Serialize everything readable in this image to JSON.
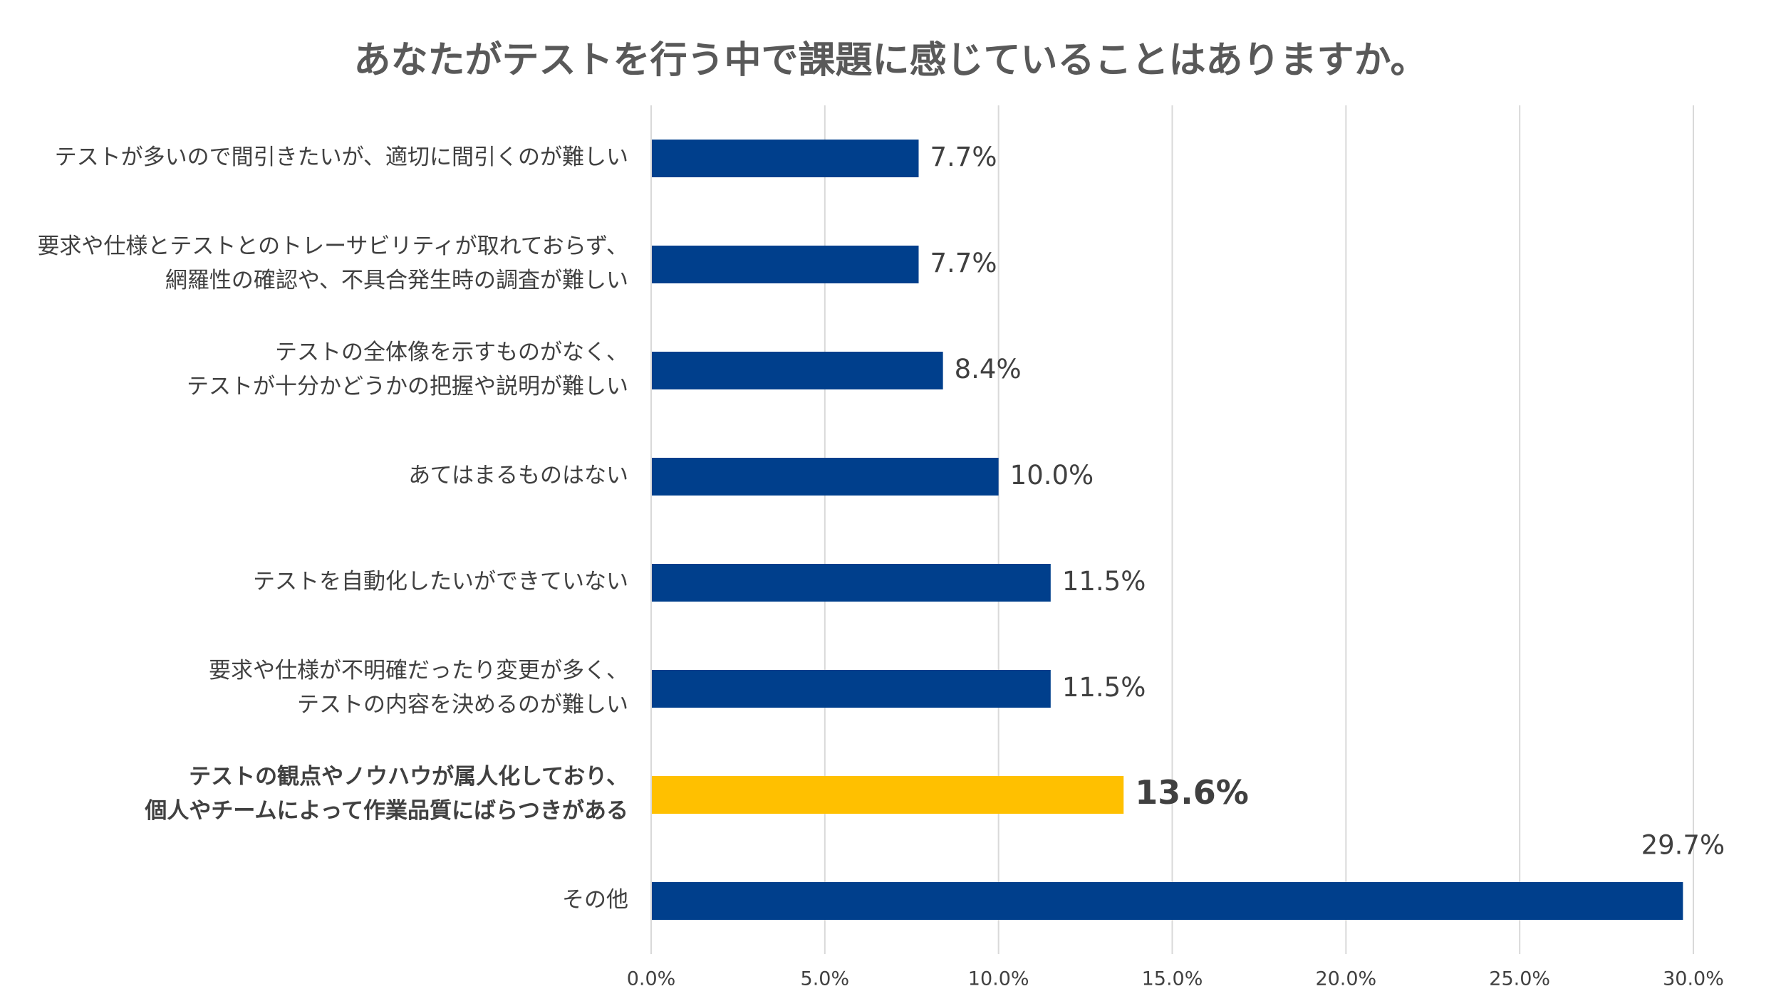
{
  "chart_data": {
    "type": "hbar",
    "title": "あなたがテストを行う中で課題に感じていることはありますか。",
    "categories": [
      [
        "テストが多いので間引きたいが、適切に間引くのが難しい"
      ],
      [
        "要求や仕様とテストとのトレーサビリティが取れておらず、",
        "網羅性の確認や、不具合発生時の調査が難しい"
      ],
      [
        "テストの全体像を示すものがなく、",
        "テストが十分かどうかの把握や説明が難しい"
      ],
      [
        "あてはまるものはない"
      ],
      [
        "テストを自動化したいができていない"
      ],
      [
        "要求や仕様が不明確だったり変更が多く、",
        "テストの内容を決めるのが難しい"
      ],
      [
        "テストの観点やノウハウが属人化しており、",
        "個人やチームによって作業品質にばらつきがある"
      ],
      [
        "その他"
      ]
    ],
    "values": [
      7.7,
      7.7,
      8.4,
      10.0,
      11.5,
      11.5,
      13.6,
      29.7
    ],
    "value_labels": [
      "7.7%",
      "7.7%",
      "8.4%",
      "10.0%",
      "11.5%",
      "11.5%",
      "13.6%",
      "29.7%"
    ],
    "colors": [
      "#003f8c",
      "#003f8c",
      "#003f8c",
      "#003f8c",
      "#003f8c",
      "#003f8c",
      "#ffc000",
      "#003f8c"
    ],
    "emphasis": [
      false,
      false,
      false,
      false,
      false,
      false,
      true,
      false
    ],
    "xlim": [
      0,
      30
    ],
    "xticks": [
      {
        "value": 0,
        "label": "0.0%"
      },
      {
        "value": 5,
        "label": "5.0%"
      },
      {
        "value": 10,
        "label": "10.0%"
      },
      {
        "value": 15,
        "label": "15.0%"
      },
      {
        "value": 20,
        "label": "20.0%"
      },
      {
        "value": 25,
        "label": "25.0%"
      },
      {
        "value": 30,
        "label": "30.0%"
      }
    ],
    "grid": true
  }
}
